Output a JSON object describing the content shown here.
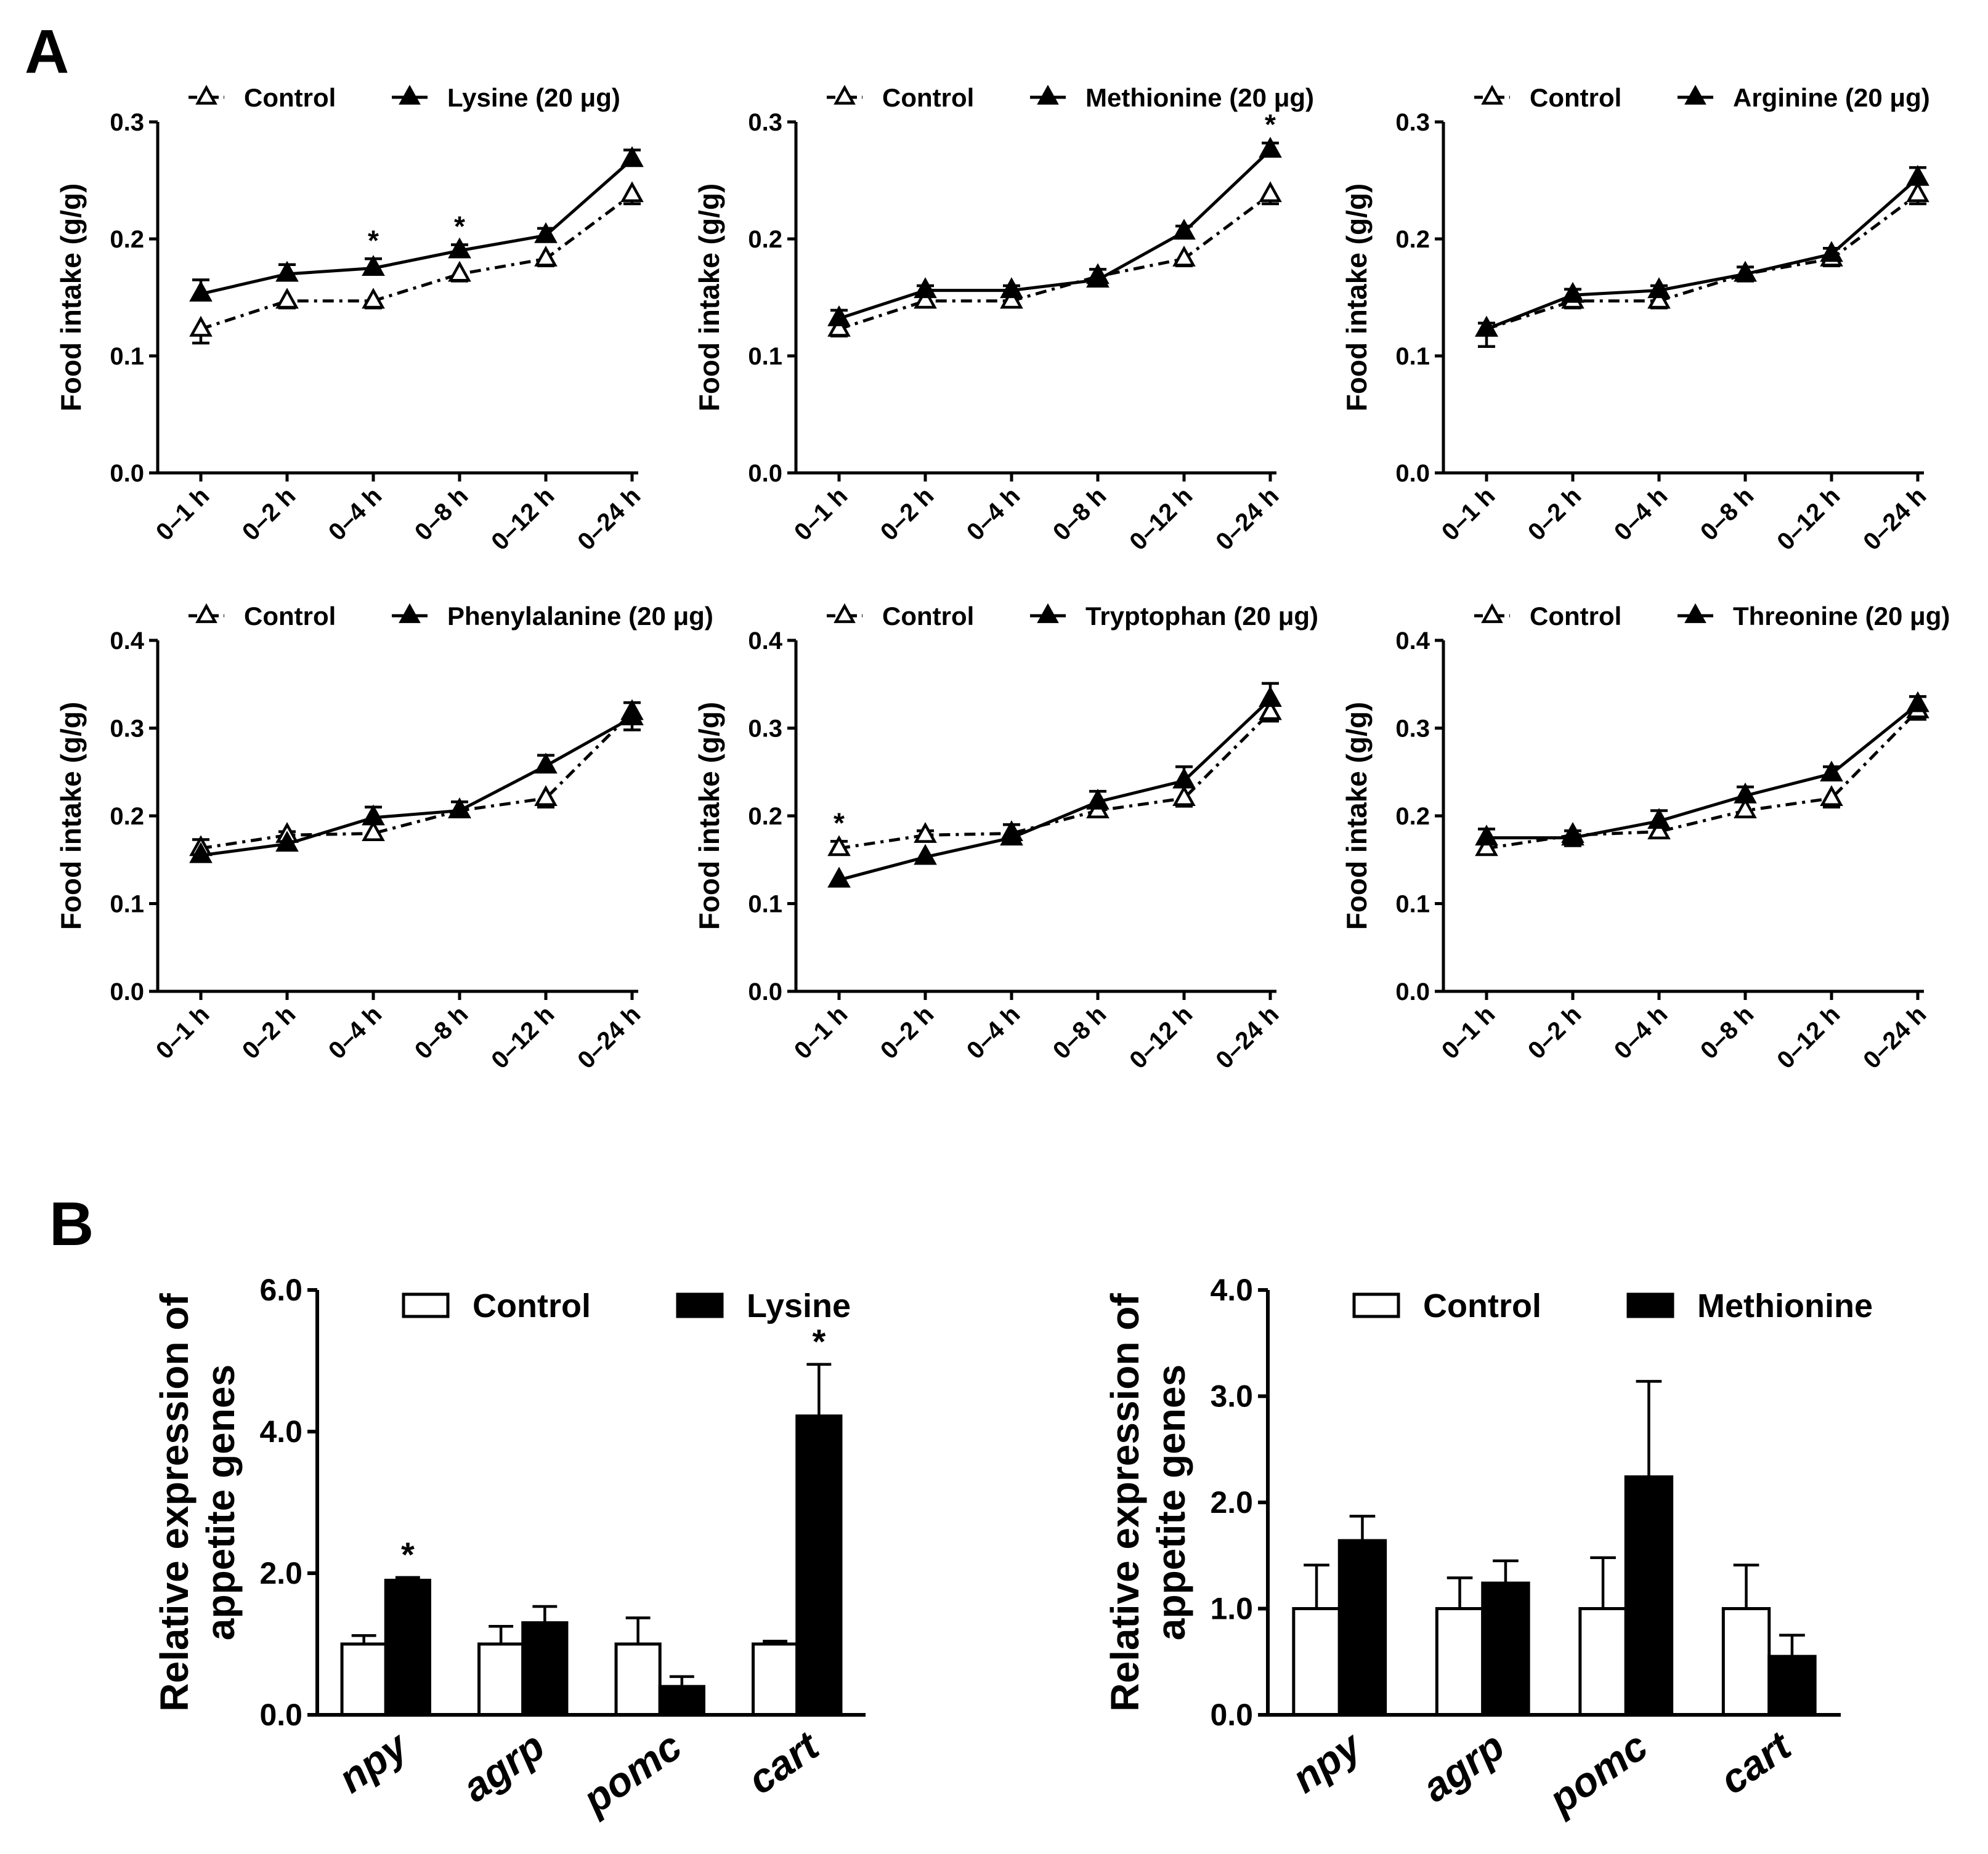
{
  "panel_labels": {
    "a": "A",
    "b": "B"
  },
  "colors": {
    "ink": "#000000",
    "bar_control": "#ffffff",
    "bar_treatment": "#000000"
  },
  "chart_data": [
    {
      "type": "line",
      "panel": "A",
      "categories": [
        "0–1 h",
        "0–2 h",
        "0–4 h",
        "0–8 h",
        "0–12 h",
        "0–24 h"
      ],
      "ylabel": "Food intake (g/g)",
      "ylim": [
        0,
        0.3
      ],
      "yticks": [
        0.0,
        0.1,
        0.2,
        0.3
      ],
      "tick_labels": [
        "0.0",
        "0.1",
        "0.2",
        "0.3"
      ],
      "legend": "top",
      "series": [
        {
          "name": "Control",
          "style": "dash-dot",
          "marker": "open-triangle",
          "values": [
            0.123,
            0.147,
            0.147,
            0.17,
            0.183,
            0.238
          ],
          "errors": [
            0.012,
            0.006,
            0.006,
            0.006,
            0.006,
            0.008
          ]
        },
        {
          "name": "Lysine (20 μg)",
          "style": "solid",
          "marker": "filled-triangle",
          "values": [
            0.153,
            0.17,
            0.175,
            0.19,
            0.203,
            0.268
          ],
          "errors": [
            0.012,
            0.008,
            0.008,
            0.005,
            0.006,
            0.008
          ]
        }
      ],
      "significance": [
        "",
        "",
        "*",
        "*",
        "",
        ""
      ]
    },
    {
      "type": "line",
      "panel": "A",
      "categories": [
        "0–1 h",
        "0–2 h",
        "0–4 h",
        "0–8 h",
        "0–12 h",
        "0–24 h"
      ],
      "ylabel": "Food intake (g/g)",
      "ylim": [
        0,
        0.3
      ],
      "yticks": [
        0.0,
        0.1,
        0.2,
        0.3
      ],
      "tick_labels": [
        "0.0",
        "0.1",
        "0.2",
        "0.3"
      ],
      "legend": "top",
      "series": [
        {
          "name": "Control",
          "style": "dash-dot",
          "marker": "open-triangle",
          "values": [
            0.123,
            0.147,
            0.147,
            0.168,
            0.183,
            0.238
          ],
          "errors": [
            0.006,
            0.005,
            0.005,
            0.006,
            0.006,
            0.008
          ]
        },
        {
          "name": "Methionine (20 μg)",
          "style": "solid",
          "marker": "filled-triangle",
          "values": [
            0.132,
            0.156,
            0.156,
            0.165,
            0.206,
            0.276
          ],
          "errors": [
            0.007,
            0.004,
            0.004,
            0.004,
            0.005,
            0.006
          ]
        }
      ],
      "significance": [
        "",
        "",
        "",
        "",
        "",
        "*"
      ]
    },
    {
      "type": "line",
      "panel": "A",
      "categories": [
        "0–1 h",
        "0–2 h",
        "0–4 h",
        "0–8 h",
        "0–12 h",
        "0–24 h"
      ],
      "ylabel": "Food intake (g/g)",
      "ylim": [
        0,
        0.3
      ],
      "yticks": [
        0.0,
        0.1,
        0.2,
        0.3
      ],
      "tick_labels": [
        "0.0",
        "0.1",
        "0.2",
        "0.3"
      ],
      "legend": "top",
      "series": [
        {
          "name": "Control",
          "style": "dash-dot",
          "marker": "open-triangle",
          "values": [
            0.123,
            0.147,
            0.147,
            0.17,
            0.183,
            0.238
          ],
          "errors": [
            0.015,
            0.006,
            0.006,
            0.006,
            0.006,
            0.008
          ]
        },
        {
          "name": "Arginine (20 μg)",
          "style": "solid",
          "marker": "filled-triangle",
          "values": [
            0.123,
            0.152,
            0.156,
            0.17,
            0.187,
            0.252
          ],
          "errors": [
            0.005,
            0.005,
            0.004,
            0.006,
            0.005,
            0.009
          ]
        }
      ],
      "significance": [
        "",
        "",
        "",
        "",
        "",
        ""
      ]
    },
    {
      "type": "line",
      "panel": "A",
      "categories": [
        "0–1 h",
        "0–2 h",
        "0–4 h",
        "0–8 h",
        "0–12 h",
        "0–24 h"
      ],
      "ylabel": "Food intake (g/g)",
      "ylim": [
        0,
        0.4
      ],
      "yticks": [
        0.0,
        0.1,
        0.2,
        0.3,
        0.4
      ],
      "tick_labels": [
        "0.0",
        "0.1",
        "0.2",
        "0.3",
        "0.4"
      ],
      "legend": "top",
      "series": [
        {
          "name": "Control",
          "style": "dash-dot",
          "marker": "open-triangle",
          "values": [
            0.163,
            0.178,
            0.18,
            0.206,
            0.22,
            0.318
          ],
          "errors": [
            0.01,
            0.004,
            0.006,
            0.006,
            0.01,
            0.011
          ]
        },
        {
          "name": "Phenylalanine (20 μg)",
          "style": "solid",
          "marker": "filled-triangle",
          "values": [
            0.155,
            0.168,
            0.198,
            0.206,
            0.257,
            0.312
          ],
          "errors": [
            0.006,
            0.005,
            0.012,
            0.01,
            0.012,
            0.014
          ]
        }
      ],
      "significance": [
        "",
        "",
        "",
        "",
        "",
        ""
      ]
    },
    {
      "type": "line",
      "panel": "A",
      "categories": [
        "0–1 h",
        "0–2 h",
        "0–4 h",
        "0–8 h",
        "0–12 h",
        "0–24 h"
      ],
      "ylabel": "Food intake (g/g)",
      "ylim": [
        0,
        0.4
      ],
      "yticks": [
        0.0,
        0.1,
        0.2,
        0.3,
        0.4
      ],
      "tick_labels": [
        "0.0",
        "0.1",
        "0.2",
        "0.3",
        "0.4"
      ],
      "legend": "top",
      "series": [
        {
          "name": "Control",
          "style": "dash-dot",
          "marker": "open-triangle",
          "values": [
            0.163,
            0.178,
            0.18,
            0.206,
            0.22,
            0.318
          ],
          "errors": [
            0.008,
            0.005,
            0.01,
            0.007,
            0.009,
            0.01
          ]
        },
        {
          "name": "Tryptophan (20 μg)",
          "style": "solid",
          "marker": "filled-triangle",
          "values": [
            0.127,
            0.153,
            0.175,
            0.216,
            0.24,
            0.333
          ],
          "errors": [
            0.006,
            0.007,
            0.007,
            0.012,
            0.016,
            0.018
          ]
        }
      ],
      "significance": [
        "*",
        "",
        "",
        "",
        "",
        ""
      ]
    },
    {
      "type": "line",
      "panel": "A",
      "categories": [
        "0–1 h",
        "0–2 h",
        "0–4 h",
        "0–8 h",
        "0–12 h",
        "0–24 h"
      ],
      "ylabel": "Food intake (g/g)",
      "ylim": [
        0,
        0.4
      ],
      "yticks": [
        0.0,
        0.1,
        0.2,
        0.3,
        0.4
      ],
      "tick_labels": [
        "0.0",
        "0.1",
        "0.2",
        "0.3",
        "0.4"
      ],
      "legend": "top",
      "series": [
        {
          "name": "Control",
          "style": "dash-dot",
          "marker": "open-triangle",
          "values": [
            0.163,
            0.178,
            0.182,
            0.206,
            0.22,
            0.32
          ],
          "errors": [
            0.006,
            0.005,
            0.007,
            0.007,
            0.01,
            0.01
          ]
        },
        {
          "name": "Threonine (20 μg)",
          "style": "solid",
          "marker": "filled-triangle",
          "values": [
            0.175,
            0.175,
            0.194,
            0.223,
            0.248,
            0.327
          ],
          "errors": [
            0.01,
            0.009,
            0.012,
            0.01,
            0.008,
            0.009
          ]
        }
      ],
      "significance": [
        "",
        "",
        "",
        "",
        "",
        ""
      ]
    },
    {
      "type": "bar",
      "panel": "B",
      "categories": [
        "npy",
        "agrp",
        "pomc",
        "cart"
      ],
      "ylabel": [
        "Relative expression of",
        "appetite genes"
      ],
      "ylim": [
        0,
        6
      ],
      "yticks": [
        0,
        2,
        4,
        6
      ],
      "tick_labels": [
        "0.0",
        "2.0",
        "4.0",
        "6.0"
      ],
      "legend": "top",
      "series": [
        {
          "name": "Control",
          "fill": "white",
          "values": [
            1.0,
            1.0,
            1.0,
            1.0
          ],
          "errors": [
            0.12,
            0.25,
            0.37,
            0.04
          ]
        },
        {
          "name": "Lysine",
          "fill": "black",
          "values": [
            1.9,
            1.3,
            0.4,
            4.22
          ],
          "errors": [
            0.04,
            0.23,
            0.14,
            0.73
          ]
        }
      ],
      "significance": [
        "*",
        "",
        "",
        "*"
      ]
    },
    {
      "type": "bar",
      "panel": "B",
      "categories": [
        "npy",
        "agrp",
        "pomc",
        "cart"
      ],
      "ylabel": [
        "Relative expression of",
        "appetite genes"
      ],
      "ylim": [
        0,
        4
      ],
      "yticks": [
        0,
        1,
        2,
        3,
        4
      ],
      "tick_labels": [
        "0.0",
        "1.0",
        "2.0",
        "3.0",
        "4.0"
      ],
      "legend": "top",
      "series": [
        {
          "name": "Control",
          "fill": "white",
          "values": [
            1.0,
            1.0,
            1.0,
            1.0
          ],
          "errors": [
            0.41,
            0.29,
            0.48,
            0.41
          ]
        },
        {
          "name": "Methionine",
          "fill": "black",
          "values": [
            1.64,
            1.24,
            2.24,
            0.55
          ],
          "errors": [
            0.23,
            0.21,
            0.9,
            0.2
          ]
        }
      ],
      "significance": [
        "",
        "",
        "",
        ""
      ]
    }
  ]
}
